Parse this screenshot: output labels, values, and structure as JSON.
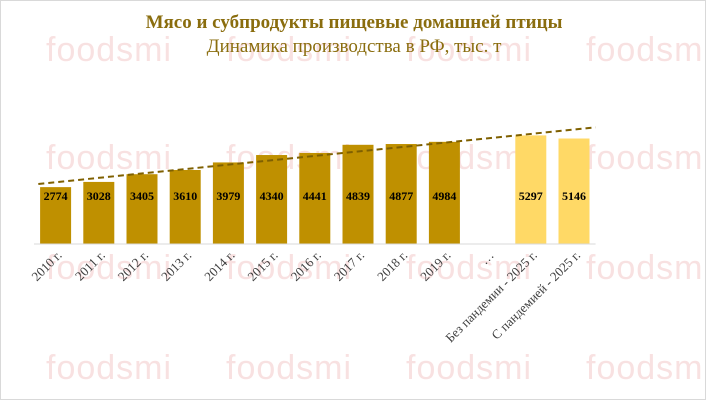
{
  "chart_data": {
    "type": "bar",
    "title": "Мясо и субпродукты пищевые домашней птицы",
    "subtitle": "Динамика производства в РФ, тыс. т",
    "xlabel": "",
    "ylabel": "",
    "categories": [
      "2010 г.",
      "2011 г.",
      "2012 г.",
      "2013 г.",
      "2014 г.",
      "2015 г.",
      "2016 г.",
      "2017 г.",
      "2018 г.",
      "2019 г.",
      "…",
      "Без пандемии - 2025 г.",
      "С пандемией - 2025 г."
    ],
    "values": [
      2774,
      3028,
      3405,
      3610,
      3979,
      4340,
      4441,
      4839,
      4877,
      4984,
      null,
      5297,
      5146
    ],
    "bar_colors": [
      "#bf9000",
      "#bf9000",
      "#bf9000",
      "#bf9000",
      "#bf9000",
      "#bf9000",
      "#bf9000",
      "#bf9000",
      "#bf9000",
      "#bf9000",
      null,
      "#ffd966",
      "#ffd966"
    ],
    "trendline": {
      "style": "dashed",
      "color": "#7f6000"
    },
    "grid": false,
    "legend": "none",
    "ylim": [
      0,
      5800
    ]
  },
  "watermark": {
    "text": "foodsmi",
    "color": "#f4c9c9"
  }
}
